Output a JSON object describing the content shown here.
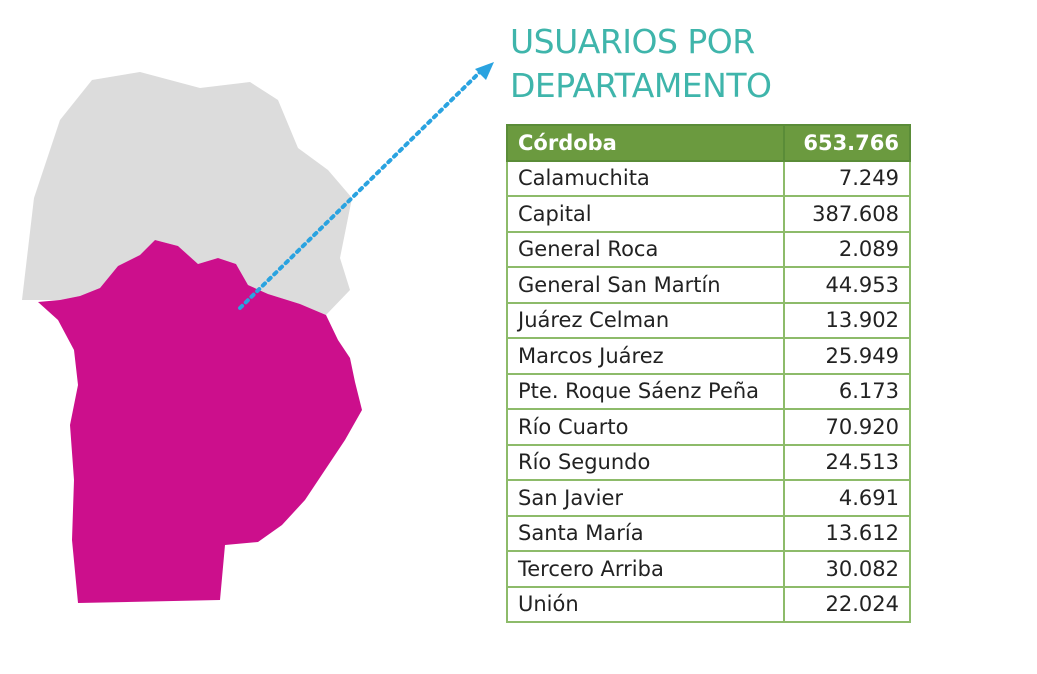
{
  "title": {
    "line1": "USUARIOS POR",
    "line2": "DEPARTAMENTO"
  },
  "table": {
    "header": {
      "name": "Córdoba",
      "value": "653.766"
    },
    "rows": [
      {
        "name": "Calamuchita",
        "value": "7.249"
      },
      {
        "name": "Capital",
        "value": "387.608"
      },
      {
        "name": "General Roca",
        "value": "2.089"
      },
      {
        "name": "General San Martín",
        "value": "44.953"
      },
      {
        "name": "Juárez Celman",
        "value": "13.902"
      },
      {
        "name": "Marcos Juárez",
        "value": "25.949"
      },
      {
        "name": "Pte. Roque Sáenz Peña",
        "value": "6.173"
      },
      {
        "name": "Río Cuarto",
        "value": "70.920"
      },
      {
        "name": "Río Segundo",
        "value": "24.513"
      },
      {
        "name": "San Javier",
        "value": "4.691"
      },
      {
        "name": "Santa María",
        "value": "13.612"
      },
      {
        "name": "Tercero Arriba",
        "value": "30.082"
      },
      {
        "name": "Unión",
        "value": "22.024"
      }
    ]
  },
  "colors": {
    "title": "#3fb5ab",
    "header_bg": "#6b9a3f",
    "table_border": "#8dbb6a",
    "map_north_region": "#dcdcdc",
    "map_highlight_region": "#cc0f8c",
    "pointer_arrow": "#2aa3e0"
  },
  "map": {
    "regions": [
      {
        "name": "north-region",
        "highlighted": false
      },
      {
        "name": "south-region",
        "highlighted": true
      }
    ],
    "pointer": "dotted arrow from south region to title"
  }
}
